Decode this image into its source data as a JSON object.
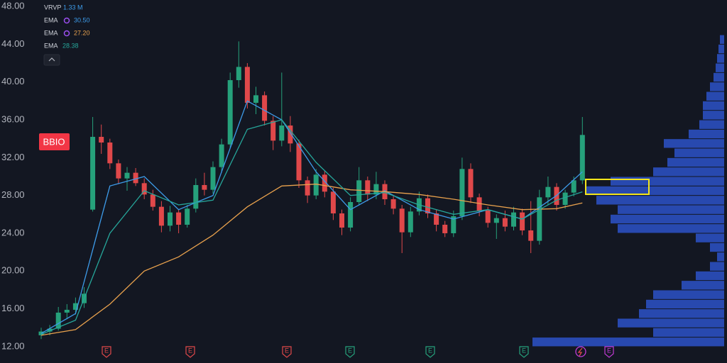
{
  "chart_data": {
    "type": "candlestick",
    "symbol": "BBIO",
    "ylim": [
      10.27,
      48.68
    ],
    "yticks": [
      {
        "value": 12,
        "label": "12.00"
      },
      {
        "value": 16,
        "label": "16.00"
      },
      {
        "value": 20,
        "label": "20.00"
      },
      {
        "value": 24,
        "label": "24.00"
      },
      {
        "value": 28,
        "label": "28.00"
      },
      {
        "value": 32,
        "label": "32.00"
      },
      {
        "value": 36,
        "label": "36.00"
      },
      {
        "value": 40,
        "label": "40.00"
      },
      {
        "value": 44,
        "label": "44.00"
      },
      {
        "value": 48,
        "label": "48.00"
      }
    ],
    "grid": false,
    "up_color": "#26a17b",
    "down_color": "#e0484a",
    "open": [
      13.2,
      13.6,
      13.9,
      15.6,
      15.9,
      16.6,
      26.5,
      34.2,
      33.6,
      31.4,
      29.8,
      30.4,
      29.3,
      28.1,
      26.8,
      24.8,
      26.2,
      24.9,
      26.6,
      29.1,
      28.6,
      31,
      33.4,
      40.2,
      41.6,
      37.8,
      38.6,
      35.9,
      33.8,
      35.4,
      33.5,
      29.6,
      28,
      30.2,
      28.4,
      26.1,
      24.6,
      27.3,
      29.6,
      28.1,
      29.2,
      27.6,
      26.6,
      24.1,
      26.3,
      27.7,
      26.1,
      24.9,
      24,
      25.8,
      30.8,
      27.8,
      26.4,
      25.1,
      25.6,
      24.7,
      26.2,
      24.3,
      23.2,
      27.8,
      28.9,
      27,
      28.3,
      29.6
    ],
    "high": [
      14,
      14.3,
      16.2,
      16.5,
      17.2,
      18.3,
      36.3,
      35.5,
      34,
      31.8,
      31,
      30.9,
      29.8,
      28.6,
      27.4,
      26.9,
      26.5,
      27,
      29.8,
      30.4,
      31.6,
      34,
      41,
      44.3,
      42,
      39.5,
      39,
      36.4,
      41,
      36.4,
      33.9,
      30,
      30.8,
      30.6,
      28.8,
      26.5,
      27.8,
      31,
      30,
      30.5,
      29.6,
      28,
      27,
      26.8,
      28.4,
      28.1,
      26.5,
      25.3,
      26.4,
      32,
      31.4,
      28.2,
      26.8,
      26,
      26.4,
      26.8,
      26.6,
      27.4,
      28.6,
      30,
      29.3,
      28.6,
      30,
      36.3
    ],
    "low": [
      12.8,
      13.2,
      13.7,
      14.9,
      15.4,
      16.1,
      26.3,
      32.4,
      30.8,
      29.2,
      28.5,
      29,
      27.6,
      26.4,
      24.1,
      24.2,
      24,
      24.6,
      26.2,
      28,
      28.2,
      30.4,
      33,
      39.4,
      37.2,
      36.6,
      35.4,
      32.8,
      33.2,
      32.6,
      28.8,
      27.2,
      27.6,
      27.8,
      25.4,
      23.8,
      24.2,
      27,
      27.4,
      27.6,
      27,
      26,
      21.9,
      23.6,
      25.9,
      25.6,
      24.2,
      23.6,
      23.6,
      25.4,
      27.2,
      25.8,
      24.6,
      23.4,
      24.2,
      24.3,
      23.8,
      21.9,
      22.8,
      27,
      26.4,
      26.6,
      27.9,
      29.2
    ],
    "close": [
      13.6,
      13.9,
      15.6,
      15.9,
      16.6,
      17.6,
      34.2,
      33.6,
      31.4,
      29.8,
      30.4,
      29.3,
      28.1,
      26.8,
      24.8,
      26.2,
      24.9,
      26.6,
      29.1,
      28.6,
      31,
      33.4,
      40.2,
      41.6,
      37.8,
      38.6,
      35.9,
      33.8,
      35.4,
      33.5,
      29.6,
      28,
      30.2,
      28.4,
      26.1,
      24.6,
      27.3,
      29.6,
      28.1,
      29.2,
      27.6,
      26.6,
      24.1,
      26.3,
      27.7,
      26.1,
      24.9,
      24,
      25.8,
      30.8,
      27.8,
      26.4,
      25.1,
      25.6,
      24.7,
      26.2,
      24.3,
      23.2,
      27.8,
      28.9,
      27,
      28.3,
      29.6,
      34.4
    ],
    "series": [
      {
        "name": "EMA",
        "color": "#3d9be9",
        "last": {
          "value": 30.5,
          "label": "30.50"
        },
        "x": [
          0,
          4,
          8,
          12,
          16,
          20,
          24,
          28,
          32,
          36,
          40,
          44,
          48,
          52,
          56,
          60,
          63
        ],
        "values": [
          13.4,
          15.5,
          29,
          30,
          26.5,
          28,
          38,
          36,
          30.5,
          26.5,
          28.5,
          26.5,
          25.5,
          26.5,
          25.5,
          28,
          30.5
        ]
      },
      {
        "name": "EMA",
        "color": "#e8a14d",
        "last": {
          "value": 27.2,
          "label": "27.20"
        },
        "x": [
          0,
          4,
          8,
          12,
          16,
          20,
          24,
          28,
          32,
          36,
          40,
          44,
          48,
          52,
          56,
          60,
          63
        ],
        "values": [
          13.2,
          13.8,
          16.5,
          20,
          21.5,
          23.8,
          26.8,
          29,
          29.2,
          28.6,
          28.4,
          28.1,
          27.6,
          27,
          26.5,
          26.6,
          27.2
        ]
      },
      {
        "name": "EMA",
        "color": "#26a69a",
        "last": {
          "value": 28.38,
          "label": "28.38"
        },
        "x": [
          0,
          4,
          8,
          12,
          16,
          20,
          24,
          28,
          32,
          36,
          40,
          44,
          48,
          52,
          56,
          60,
          63
        ],
        "values": [
          13.3,
          14.8,
          24,
          28.5,
          27,
          27.5,
          35,
          36,
          31.5,
          28,
          28.3,
          27,
          26,
          26.5,
          25.5,
          27.5,
          28.38
        ]
      }
    ],
    "profile": {
      "name": "VRVP",
      "total": {
        "value": 1330000,
        "label": "1.33 M"
      },
      "color": "#2d52c8",
      "bins": [
        12,
        13,
        14,
        15,
        16,
        17,
        18,
        19,
        20,
        21,
        22,
        23,
        24,
        25,
        26,
        27,
        28,
        29,
        30,
        31,
        32,
        33,
        34,
        35,
        36,
        37,
        38,
        39,
        40,
        41,
        42,
        43,
        44,
        45
      ],
      "values": [
        270,
        100,
        150,
        120,
        110,
        100,
        60,
        40,
        20,
        10,
        20,
        40,
        150,
        160,
        150,
        180,
        195,
        160,
        100,
        80,
        70,
        85,
        50,
        35,
        30,
        30,
        25,
        20,
        15,
        12,
        10,
        8,
        6
      ]
    },
    "events": [
      {
        "label": "E"
      },
      {
        "label": "E"
      },
      {
        "label": "E"
      },
      {
        "label": "E"
      },
      {
        "label": "E"
      },
      {
        "label": "E"
      },
      {
        "label": "E"
      }
    ]
  }
}
